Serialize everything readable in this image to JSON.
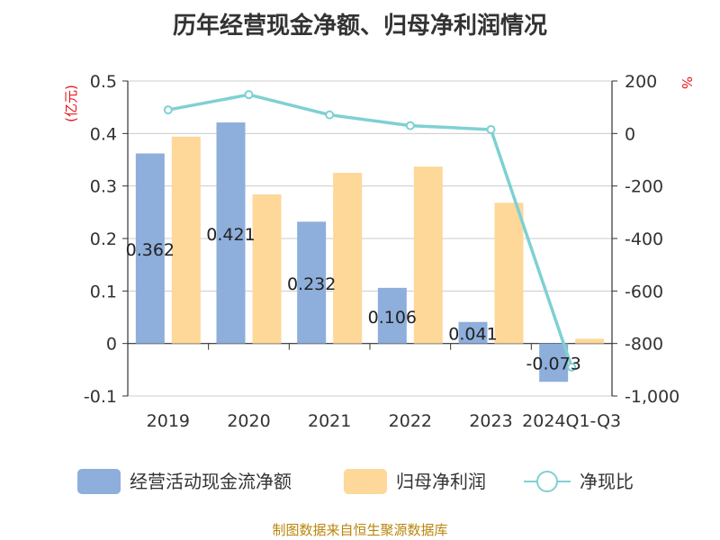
{
  "title": "历年经营现金净额、归母净利润情况",
  "source": "制图数据来自恒生聚源数据库",
  "chart_data": {
    "type": "bar",
    "categories": [
      "2019",
      "2020",
      "2021",
      "2022",
      "2023",
      "2024Q1-Q3"
    ],
    "series": [
      {
        "name": "经营活动现金流净额",
        "kind": "bar",
        "axis": "left",
        "color": "#8eaedb",
        "values": [
          0.362,
          0.421,
          0.232,
          0.106,
          0.041,
          -0.073
        ],
        "data_labels": [
          "0.362",
          "0.421",
          "0.232",
          "0.106",
          "0.041",
          "-0.073"
        ]
      },
      {
        "name": "归母净利润",
        "kind": "bar",
        "axis": "left",
        "color": "#fdd899",
        "values": [
          0.394,
          0.284,
          0.325,
          0.337,
          0.268,
          0.009
        ]
      },
      {
        "name": "净现比",
        "kind": "line",
        "axis": "right",
        "color": "#7fd0d3",
        "values": [
          90,
          148,
          71,
          30,
          15,
          -890
        ]
      }
    ],
    "left_axis": {
      "unit": "(亿元)",
      "ylim": [
        -0.1,
        0.5
      ],
      "ticks": [
        0.5,
        0.4,
        0.3,
        0.2,
        0.1,
        0,
        -0.1
      ],
      "tick_labels": [
        "0.5",
        "0.4",
        "0.3",
        "0.2",
        "0.1",
        "0",
        "-0.1"
      ]
    },
    "right_axis": {
      "unit": "%",
      "ylim": [
        -1000,
        200
      ],
      "ticks": [
        200,
        0,
        -200,
        -400,
        -600,
        -800,
        -1000
      ],
      "tick_labels": [
        "200",
        "0",
        "-200",
        "-400",
        "-600",
        "-800",
        "-1,000"
      ]
    },
    "grid": true,
    "legend_position": "bottom"
  }
}
